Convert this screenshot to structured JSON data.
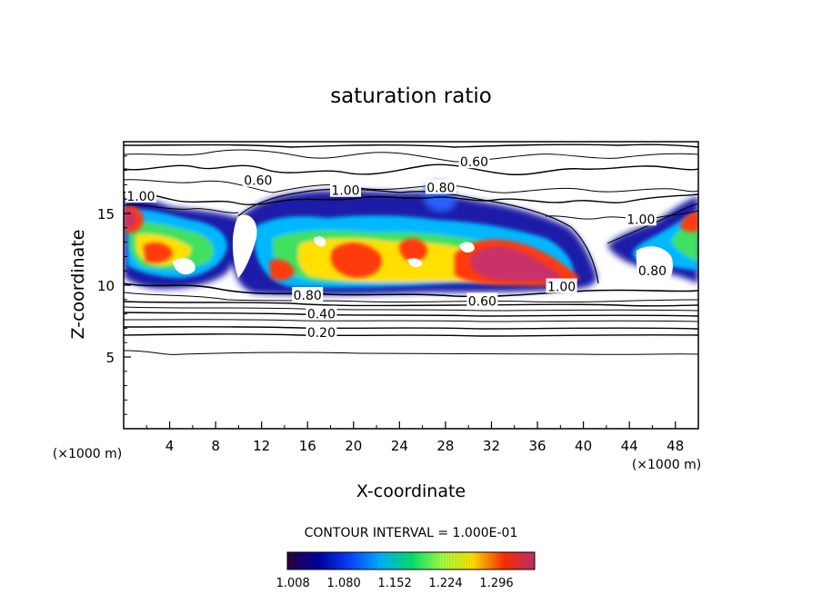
{
  "chart_data": {
    "type": "heatmap",
    "title": "saturation ratio",
    "xlabel": "X-coordinate",
    "ylabel": "Z-coordinate",
    "x_unit_left": "(×1000 m)",
    "x_unit_right": "(×1000 m)",
    "xlim": [
      0,
      50
    ],
    "ylim": [
      0,
      20
    ],
    "x_ticks": [
      "4",
      "8",
      "12",
      "16",
      "20",
      "24",
      "28",
      "32",
      "36",
      "40",
      "44",
      "48"
    ],
    "y_ticks": [
      "5",
      "10",
      "15"
    ],
    "contour_interval_text": "CONTOUR INTERVAL = 1.000E-01",
    "colorbar": {
      "min": 1.0,
      "max": 1.35,
      "tick_labels": [
        "1.008",
        "1.080",
        "1.152",
        "1.224",
        "1.296"
      ],
      "colors": [
        "#2a0040",
        "#0000a0",
        "#0a40ff",
        "#00b0ff",
        "#00e070",
        "#a0ff40",
        "#ffe000",
        "#ff3000",
        "#c0306a"
      ]
    },
    "contour_labels": [
      {
        "text": "0.60",
        "x": 30.5,
        "z": 18.6
      },
      {
        "text": "0.60",
        "x": 11.7,
        "z": 17.3
      },
      {
        "text": "1.00",
        "x": 19.3,
        "z": 16.6
      },
      {
        "text": "0.80",
        "x": 27.6,
        "z": 16.8
      },
      {
        "text": "1.00",
        "x": 1.5,
        "z": 16.2
      },
      {
        "text": "1.00",
        "x": 45.0,
        "z": 14.6
      },
      {
        "text": "0.80",
        "x": 46.0,
        "z": 11.0
      },
      {
        "text": "1.00",
        "x": 38.1,
        "z": 9.9
      },
      {
        "text": "0.60",
        "x": 31.2,
        "z": 8.9
      },
      {
        "text": "0.80",
        "x": 16.0,
        "z": 9.3
      },
      {
        "text": "0.40",
        "x": 17.2,
        "z": 8.0
      },
      {
        "text": "0.20",
        "x": 17.2,
        "z": 6.7
      }
    ]
  }
}
